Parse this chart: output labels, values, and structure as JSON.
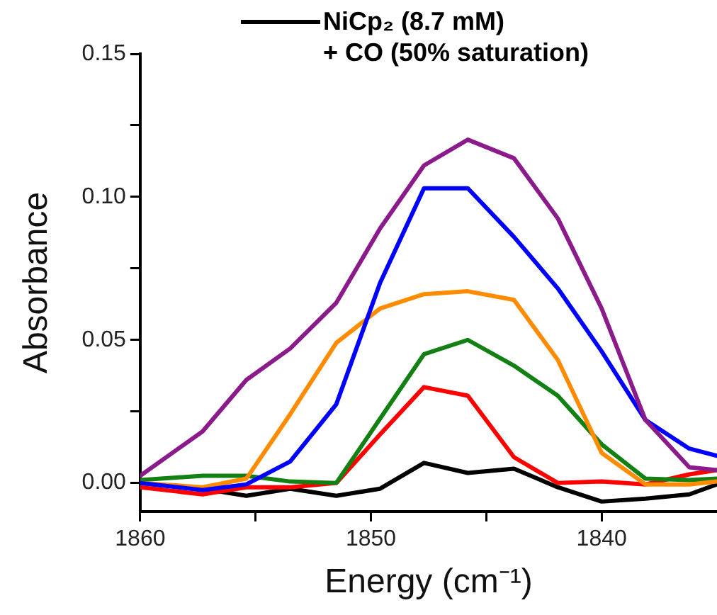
{
  "chart_data": {
    "type": "line",
    "xlabel": "Energy (cm⁻¹)",
    "ylabel": "Absorbance",
    "x": [
      1860,
      1857.3,
      1855.4,
      1853.5,
      1851.5,
      1849.6,
      1847.7,
      1845.8,
      1843.8,
      1841.9,
      1840.0,
      1838.1,
      1836.2,
      1835
    ],
    "series": [
      {
        "color": "#8b1a8b",
        "values": [
          0.0025,
          0.018,
          0.036,
          0.047,
          0.063,
          0.089,
          0.111,
          0.12,
          0.1135,
          0.0925,
          0.061,
          0.022,
          0.0055,
          0.0045
        ]
      },
      {
        "color": "#0000ff",
        "values": [
          0.0,
          -0.0025,
          -0.0005,
          0.0075,
          0.0275,
          0.07,
          0.103,
          0.103,
          0.086,
          0.068,
          0.046,
          0.022,
          0.012,
          0.0095
        ]
      },
      {
        "color": "#ff8c00",
        "values": [
          0.0,
          -0.0015,
          0.0015,
          0.024,
          0.049,
          0.061,
          0.066,
          0.067,
          0.064,
          0.043,
          0.0105,
          -0.0005,
          -0.0005,
          0.0005
        ]
      },
      {
        "color": "#138013",
        "values": [
          0.001,
          0.0025,
          0.0025,
          0.0005,
          0.0,
          0.0225,
          0.045,
          0.05,
          0.041,
          0.0305,
          0.0135,
          0.0015,
          0.001,
          0.0015
        ]
      },
      {
        "color": "#ff0000",
        "values": [
          -0.0015,
          -0.004,
          -0.0015,
          -0.0015,
          0.0,
          0.017,
          0.0335,
          0.0305,
          0.009,
          0.0,
          0.0005,
          -0.0005,
          0.003,
          0.0045
        ]
      },
      {
        "name": "NiCp₂ (8.7 mM)\n+ CO (50% saturation)",
        "color": "#000000",
        "values": [
          0.0,
          -0.002,
          -0.0045,
          -0.002,
          -0.0045,
          -0.002,
          0.007,
          0.0035,
          0.005,
          -0.0015,
          -0.0065,
          -0.0055,
          -0.004,
          -0.0005
        ]
      }
    ],
    "xlim": [
      1860,
      1835
    ],
    "xticks": [
      1860,
      {
        "value": 1855,
        "label": null
      },
      1850,
      {
        "value": 1845,
        "label": null
      },
      1840
    ],
    "ylim": [
      -0.01,
      0.15
    ],
    "yticks": [
      {
        "value": 0,
        "label": "0.00"
      },
      {
        "value": 0.025,
        "label": null
      },
      {
        "value": 0.05,
        "label": "0.05"
      },
      {
        "value": 0.075,
        "label": null
      },
      {
        "value": 0.1,
        "label": "0.10"
      },
      {
        "value": 0.125,
        "label": null
      },
      {
        "value": 0.15,
        "label": "0.15"
      }
    ],
    "grid": false,
    "legend": "top right",
    "marker": "none",
    "line_style": "solid"
  }
}
